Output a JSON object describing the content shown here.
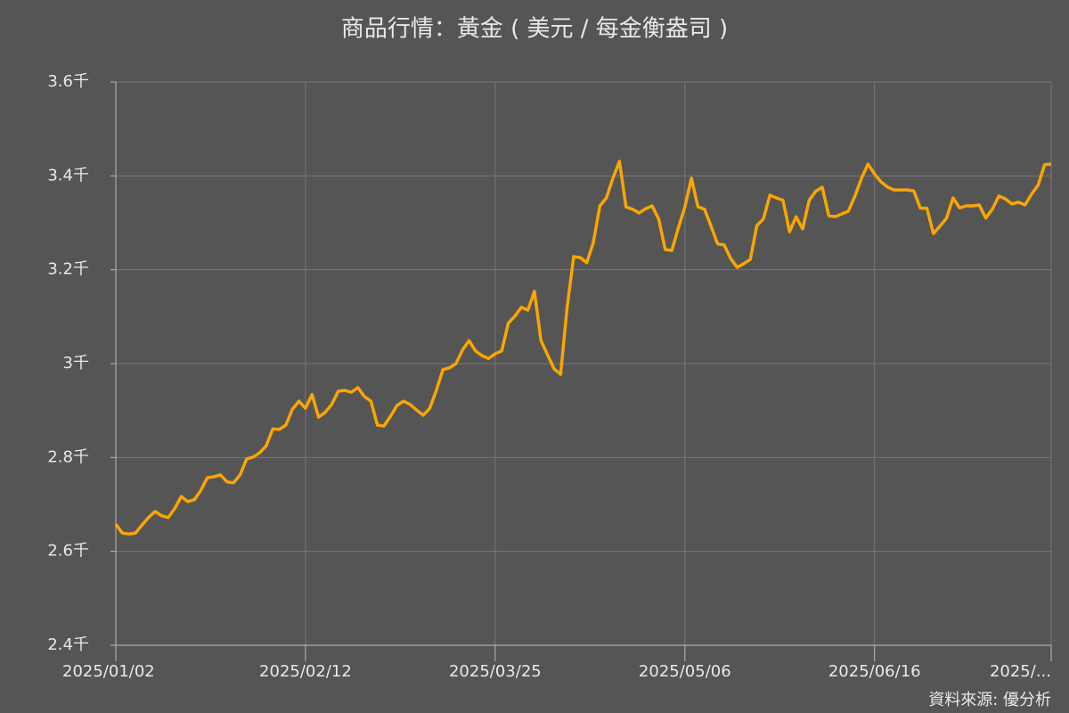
{
  "chart_data": {
    "type": "line",
    "title": "商品行情：黃金 ( 美元 / 每金衡盎司 )",
    "source": "資料來源: 優分析",
    "categories": [
      "2025/01/02",
      null,
      null,
      null,
      null,
      null,
      null,
      null,
      null,
      null,
      null,
      null,
      null,
      null,
      null,
      null,
      null,
      null,
      null,
      null,
      null,
      null,
      null,
      null,
      null,
      null,
      null,
      null,
      null,
      "2025/02/12",
      null,
      null,
      null,
      null,
      null,
      null,
      null,
      null,
      null,
      null,
      null,
      null,
      null,
      null,
      null,
      null,
      null,
      null,
      null,
      null,
      null,
      null,
      null,
      null,
      null,
      null,
      null,
      null,
      "2025/03/25",
      null,
      null,
      null,
      null,
      null,
      null,
      null,
      null,
      null,
      null,
      null,
      null,
      null,
      null,
      null,
      null,
      null,
      null,
      null,
      null,
      null,
      null,
      null,
      null,
      null,
      null,
      null,
      null,
      "2025/05/06",
      null,
      null,
      null,
      null,
      null,
      null,
      null,
      null,
      null,
      null,
      null,
      null,
      null,
      null,
      null,
      null,
      null,
      null,
      null,
      null,
      null,
      null,
      null,
      null,
      null,
      null,
      null,
      null,
      "2025/06/16",
      null,
      null,
      null,
      null,
      null,
      null,
      null,
      null,
      null,
      null,
      null,
      null,
      null,
      null,
      null,
      null,
      null,
      null,
      null,
      null,
      null,
      null,
      null,
      null,
      null,
      null,
      "2025/..."
    ],
    "series": [
      {
        "name": "黃金",
        "color": "#f9a602",
        "values": [
          2658,
          2639,
          2637,
          2639,
          2656,
          2672,
          2685,
          2676,
          2672,
          2691,
          2717,
          2706,
          2710,
          2730,
          2757,
          2759,
          2763,
          2748,
          2746,
          2763,
          2797,
          2801,
          2810,
          2825,
          2861,
          2860,
          2869,
          2903,
          2920,
          2905,
          2934,
          2886,
          2896,
          2913,
          2941,
          2943,
          2939,
          2949,
          2930,
          2920,
          2869,
          2867,
          2888,
          2911,
          2920,
          2913,
          2901,
          2890,
          2905,
          2943,
          2987,
          2991,
          3000,
          3029,
          3049,
          3027,
          3017,
          3011,
          3021,
          3027,
          3086,
          3101,
          3120,
          3114,
          3154,
          3049,
          3019,
          2989,
          2977,
          3120,
          3228,
          3226,
          3215,
          3258,
          3336,
          3353,
          3395,
          3431,
          3334,
          3329,
          3321,
          3330,
          3336,
          3308,
          3243,
          3241,
          3289,
          3334,
          3395,
          3334,
          3329,
          3293,
          3255,
          3253,
          3224,
          3205,
          3213,
          3222,
          3294,
          3308,
          3359,
          3353,
          3348,
          3281,
          3313,
          3287,
          3348,
          3367,
          3376,
          3315,
          3313,
          3319,
          3325,
          3357,
          3395,
          3425,
          3404,
          3387,
          3376,
          3370,
          3370,
          3370,
          3368,
          3331,
          3331,
          3277,
          3293,
          3310,
          3353,
          3332,
          3336,
          3336,
          3338,
          3310,
          3329,
          3357,
          3351,
          3340,
          3344,
          3338,
          3361,
          3380,
          3424,
          3425
        ]
      }
    ],
    "ylim": [
      2400,
      3600
    ],
    "yticks": [
      {
        "value": 2400,
        "label": "2.4千"
      },
      {
        "value": 2600,
        "label": "2.6千"
      },
      {
        "value": 2800,
        "label": "2.8千"
      },
      {
        "value": 3000,
        "label": "3千"
      },
      {
        "value": 3200,
        "label": "3.2千"
      },
      {
        "value": 3400,
        "label": "3.4千"
      },
      {
        "value": 3600,
        "label": "3.6千"
      }
    ],
    "grid": true
  }
}
